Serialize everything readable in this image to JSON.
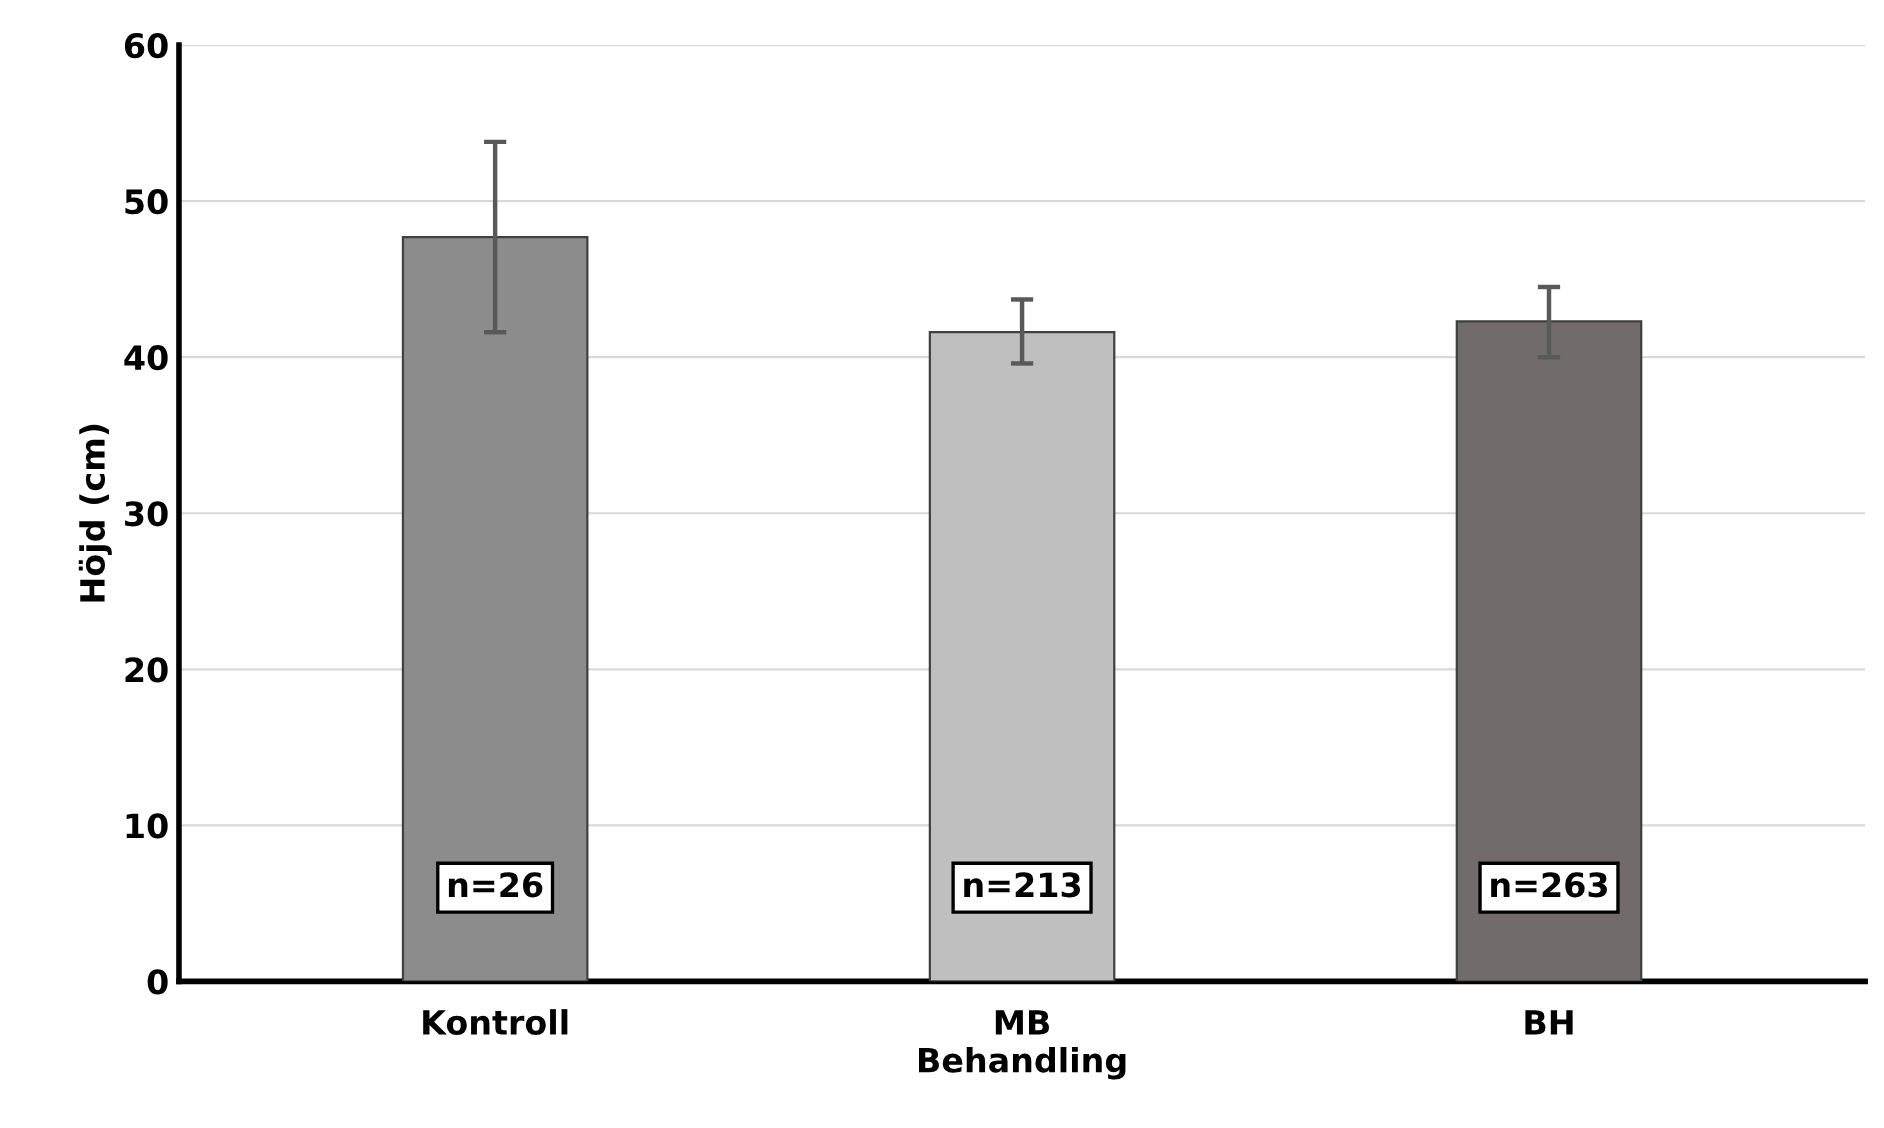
{
  "chart_data": {
    "type": "bar",
    "xlabel": "Behandling",
    "ylabel": "Höjd (cm)",
    "categories": [
      "Kontroll",
      "MB",
      "BH"
    ],
    "values": [
      47.7,
      41.6,
      42.3
    ],
    "colors": [
      "#8c8c8c",
      "#bfbfbf",
      "#716b6b"
    ],
    "errors": [
      [
        41.6,
        53.8
      ],
      [
        39.6,
        43.7
      ],
      [
        40.0,
        44.5
      ]
    ],
    "ylim": [
      0,
      60
    ],
    "yticks": [
      0,
      10,
      20,
      30,
      40,
      50,
      60
    ],
    "grid": "y",
    "annotations": [
      "n=26",
      "n=213",
      "n=263"
    ]
  }
}
